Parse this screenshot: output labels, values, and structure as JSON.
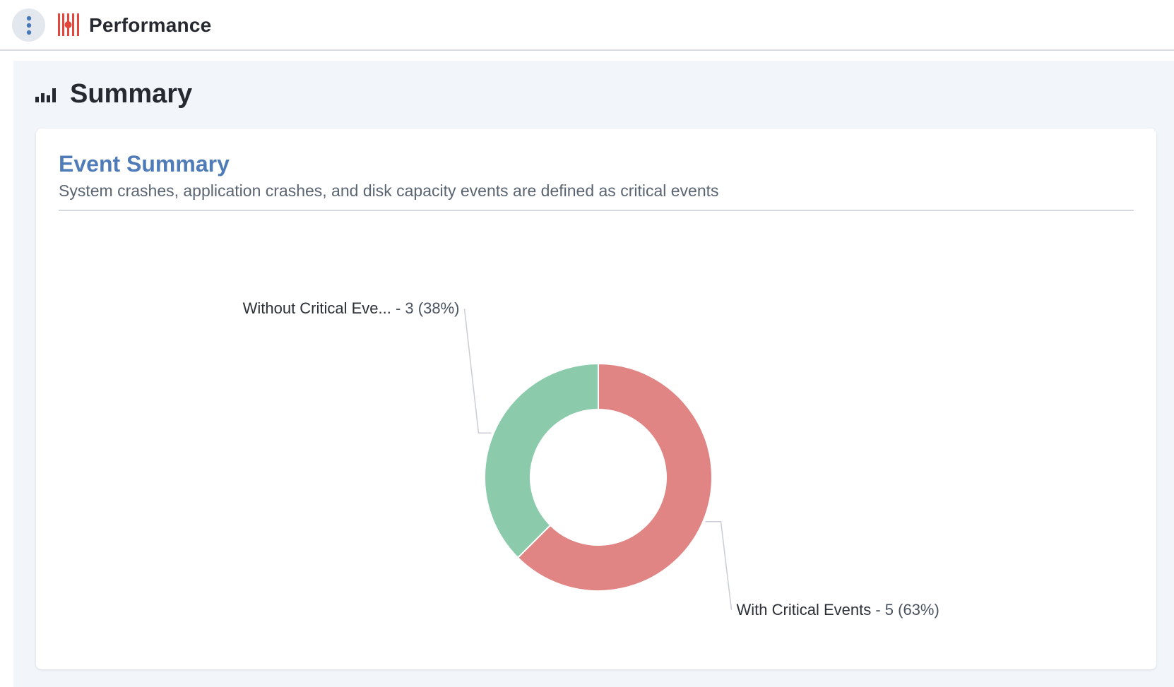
{
  "header": {
    "menu_icon": "vertical-dots-icon",
    "logo_icon": "performance-logo-icon",
    "title": "Performance"
  },
  "section": {
    "icon": "bar-chart-icon",
    "title": "Summary"
  },
  "card": {
    "title": "Event Summary",
    "subtitle": "System crashes, application crashes, and disk capacity events are defined as critical events"
  },
  "colors": {
    "with_critical": "#e08484",
    "without_critical": "#8bcbac",
    "card_title": "#4f7cb8",
    "logo_red": "#e2463c"
  },
  "chart_data": {
    "type": "pie",
    "donut": true,
    "title": "",
    "slices": [
      {
        "label": "With Critical Events",
        "label_display": "With Critical Events",
        "value": 5,
        "percent_text": "(63%)",
        "color": "#e08484"
      },
      {
        "label": "Without Critical Events",
        "label_display": "Without Critical Eve...",
        "value": 3,
        "percent_text": "(38%)",
        "color": "#8bcbac"
      }
    ],
    "legend": "none"
  }
}
